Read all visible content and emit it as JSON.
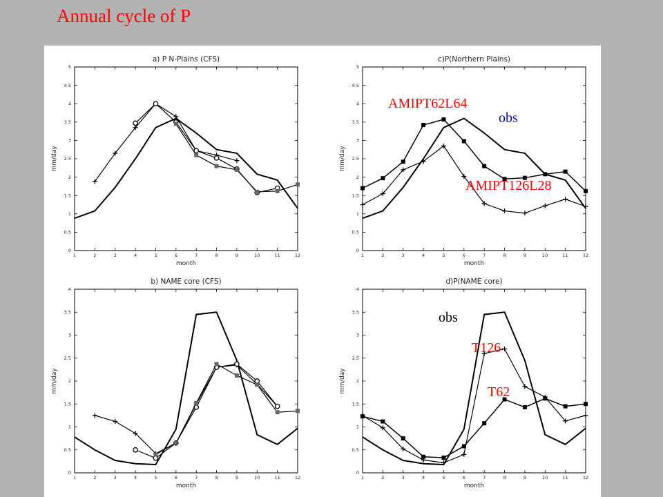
{
  "slide": {
    "title": "Annual cycle of P"
  },
  "colors": {
    "slide_bg": "#b2b2b2",
    "panel_bg": "#ffffff",
    "line": "#000000",
    "red_label": "#ff0000",
    "blue_label": "#0a0aa8",
    "gray_marker": "#666666"
  },
  "chart_data": [
    {
      "id": "a",
      "type": "line",
      "title": "a) P N-Plains (CFS)",
      "xlabel": "month",
      "ylabel": "mm/day",
      "x": [
        1,
        2,
        3,
        4,
        5,
        6,
        7,
        8,
        9,
        10,
        11,
        12
      ],
      "xlim": [
        1,
        12
      ],
      "ylim": [
        0,
        5
      ],
      "yticks": [
        "0",
        "0.5",
        "1",
        "1.5",
        "2",
        "2.5",
        "3",
        "3.5",
        "4",
        "4.5",
        "5"
      ],
      "xticks": [
        "1",
        "2",
        "3",
        "4",
        "5",
        "6",
        "7",
        "8",
        "9",
        "10",
        "11",
        "12"
      ],
      "series": [
        {
          "name": "obs",
          "marker": "none",
          "width": 2,
          "values": [
            0.88,
            1.08,
            1.72,
            2.5,
            3.35,
            3.6,
            3.2,
            2.75,
            2.65,
            2.08,
            1.92,
            1.15
          ]
        },
        {
          "name": "plus",
          "marker": "plus",
          "width": 1.2,
          "values": [
            null,
            1.88,
            2.65,
            3.35,
            4.0,
            3.65,
            2.72,
            2.6,
            2.45,
            null,
            null,
            null
          ]
        },
        {
          "name": "open circle",
          "marker": "circle",
          "width": 1.2,
          "values": [
            null,
            null,
            null,
            3.47,
            4.0,
            3.5,
            2.72,
            2.52,
            2.22,
            1.58,
            1.7,
            null
          ]
        },
        {
          "name": "gray square",
          "marker": "square-gray",
          "width": 1.2,
          "values": [
            null,
            null,
            null,
            null,
            null,
            3.45,
            2.6,
            2.3,
            2.2,
            1.6,
            1.62,
            1.8
          ]
        }
      ],
      "annotations": []
    },
    {
      "id": "c",
      "type": "line",
      "title": "c)P(Northern Plains)",
      "xlabel": "month",
      "ylabel": "mm/day",
      "x": [
        1,
        2,
        3,
        4,
        5,
        6,
        7,
        8,
        9,
        10,
        11,
        12
      ],
      "xlim": [
        1,
        12
      ],
      "ylim": [
        0,
        5
      ],
      "yticks": [
        "0",
        "0.5",
        "1",
        "1.5",
        "2",
        "2.5",
        "3",
        "3.5",
        "4",
        "4.5",
        "5"
      ],
      "xticks": [
        "1",
        "2",
        "3",
        "4",
        "5",
        "6",
        "7",
        "8",
        "9",
        "10",
        "11",
        "12"
      ],
      "series": [
        {
          "name": "obs",
          "marker": "none",
          "width": 2,
          "values": [
            0.88,
            1.08,
            1.72,
            2.5,
            3.35,
            3.6,
            3.2,
            2.75,
            2.65,
            2.08,
            1.92,
            1.15
          ]
        },
        {
          "name": "AMIPT62L64",
          "marker": "square",
          "width": 1.5,
          "values": [
            1.7,
            1.97,
            2.42,
            3.42,
            3.57,
            2.98,
            2.3,
            1.95,
            1.98,
            2.08,
            2.15,
            1.62
          ]
        },
        {
          "name": "AMIPT126L28",
          "marker": "plus",
          "width": 1.2,
          "values": [
            1.25,
            1.55,
            2.2,
            2.43,
            2.85,
            2.02,
            1.28,
            1.08,
            1.02,
            1.22,
            1.4,
            1.2
          ]
        }
      ],
      "annotations": [
        {
          "text": "AMIPT62L64",
          "color": "red"
        },
        {
          "text": "obs",
          "color": "blue"
        },
        {
          "text": "AMIPT126L28",
          "color": "red"
        }
      ]
    },
    {
      "id": "b",
      "type": "line",
      "title": "b) NAME core (CFS)",
      "xlabel": "month",
      "ylabel": "mm/day",
      "x": [
        1,
        2,
        3,
        4,
        5,
        6,
        7,
        8,
        9,
        10,
        11,
        12
      ],
      "xlim": [
        1,
        12
      ],
      "ylim": [
        0,
        4
      ],
      "yticks": [
        "0",
        "0.5",
        "1",
        "1.5",
        "2",
        "2.5",
        "3",
        "3.5",
        "4"
      ],
      "xticks": [
        "1",
        "2",
        "3",
        "4",
        "5",
        "6",
        "7",
        "8",
        "9",
        "10",
        "11",
        "12"
      ],
      "series": [
        {
          "name": "obs",
          "marker": "none",
          "width": 2,
          "values": [
            0.78,
            0.5,
            0.27,
            0.2,
            0.18,
            0.95,
            3.45,
            3.5,
            2.45,
            0.83,
            0.62,
            0.97
          ]
        },
        {
          "name": "plus",
          "marker": "plus",
          "width": 1.2,
          "values": [
            null,
            1.25,
            1.12,
            0.86,
            0.42,
            0.65,
            1.5,
            2.3,
            2.35,
            1.93,
            1.45,
            null
          ]
        },
        {
          "name": "open circle",
          "marker": "circle",
          "width": 1.2,
          "values": [
            null,
            null,
            null,
            0.5,
            0.32,
            0.65,
            1.43,
            2.3,
            2.37,
            2.0,
            1.45,
            null
          ]
        },
        {
          "name": "gray square",
          "marker": "square-gray",
          "width": 1.2,
          "values": [
            null,
            null,
            null,
            null,
            0.4,
            0.65,
            1.52,
            2.37,
            2.12,
            1.92,
            1.32,
            1.35
          ]
        }
      ],
      "annotations": []
    },
    {
      "id": "d",
      "type": "line",
      "title": "d)P(NAME core)",
      "xlabel": "month",
      "ylabel": "mm/day",
      "x": [
        1,
        2,
        3,
        4,
        5,
        6,
        7,
        8,
        9,
        10,
        11,
        12
      ],
      "xlim": [
        1,
        12
      ],
      "ylim": [
        0,
        4
      ],
      "yticks": [
        "0",
        "0.5",
        "1",
        "1.5",
        "2",
        "2.5",
        "3",
        "3.5",
        "4"
      ],
      "xticks": [
        "1",
        "2",
        "3",
        "4",
        "5",
        "6",
        "7",
        "8",
        "9",
        "10",
        "11",
        "12"
      ],
      "series": [
        {
          "name": "obs",
          "marker": "none",
          "width": 2,
          "values": [
            0.78,
            0.5,
            0.27,
            0.2,
            0.18,
            0.95,
            3.45,
            3.5,
            2.45,
            0.83,
            0.62,
            0.97
          ]
        },
        {
          "name": "T62",
          "marker": "square",
          "width": 1.5,
          "values": [
            1.23,
            1.12,
            0.75,
            0.35,
            0.33,
            0.58,
            1.08,
            1.6,
            1.43,
            1.62,
            1.45,
            1.5
          ]
        },
        {
          "name": "T126",
          "marker": "plus",
          "width": 1.2,
          "values": [
            1.25,
            0.98,
            0.52,
            0.28,
            0.22,
            0.4,
            2.6,
            2.7,
            1.88,
            1.65,
            1.13,
            1.25
          ]
        }
      ],
      "annotations": [
        {
          "text": "obs",
          "color": "black"
        },
        {
          "text": "T126",
          "color": "red"
        },
        {
          "text": "T62",
          "color": "red"
        }
      ]
    }
  ]
}
